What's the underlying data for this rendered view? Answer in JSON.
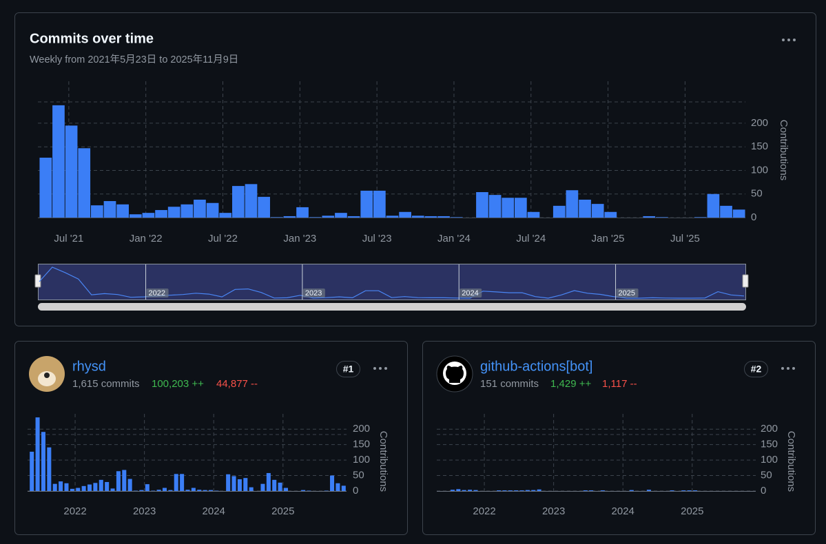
{
  "header": {
    "title": "Commits over time",
    "subtitle": "Weekly from 2021年5月23日 to 2025年11月9日"
  },
  "navigator": {
    "labels": [
      "2022",
      "2023",
      "2024",
      "2025"
    ]
  },
  "contributors": [
    {
      "name": "rhysd",
      "rank": "#1",
      "commits": "1,615 commits",
      "additions": "100,203 ++",
      "deletions": "44,877 --"
    },
    {
      "name": "github-actions[bot]",
      "rank": "#2",
      "commits": "151 commits",
      "additions": "1,429 ++",
      "deletions": "1,117 --"
    }
  ],
  "chart_data": [
    {
      "type": "bar",
      "y_label": "Contributions",
      "color": "#3b7ef6",
      "grid": true,
      "categories": [
        null,
        null,
        "Jul '21",
        null,
        null,
        null,
        null,
        null,
        "Jan '22",
        null,
        null,
        null,
        null,
        null,
        "Jul '22",
        null,
        null,
        null,
        null,
        null,
        "Jan '23",
        null,
        null,
        null,
        null,
        null,
        "Jul '23",
        null,
        null,
        null,
        null,
        null,
        "Jan '24",
        null,
        null,
        null,
        null,
        null,
        "Jul '24",
        null,
        null,
        null,
        null,
        null,
        "Jan '25",
        null,
        null,
        null,
        null,
        null,
        "Jul '25",
        null,
        null,
        null,
        null
      ],
      "values": [
        127,
        238,
        195,
        147,
        26,
        35,
        28,
        7,
        10,
        16,
        23,
        28,
        38,
        31,
        10,
        67,
        71,
        44,
        1,
        3,
        22,
        1,
        4,
        10,
        3,
        57,
        57,
        4,
        12,
        4,
        3,
        3,
        1,
        0,
        54,
        48,
        42,
        42,
        12,
        0,
        25,
        58,
        38,
        29,
        12,
        0,
        0,
        3,
        1,
        0,
        0,
        1,
        50,
        25,
        17
      ],
      "ylim": [
        0,
        286
      ],
      "yticks": [
        0,
        50,
        100,
        150,
        200
      ]
    },
    {
      "type": "bar",
      "y_label": "Contributions",
      "color": "#3b7ef6",
      "grid": true,
      "categories": [
        null,
        null,
        null,
        null,
        null,
        null,
        null,
        null,
        "2022",
        null,
        null,
        null,
        null,
        null,
        null,
        null,
        null,
        null,
        null,
        null,
        "2023",
        null,
        null,
        null,
        null,
        null,
        null,
        null,
        null,
        null,
        null,
        null,
        "2024",
        null,
        null,
        null,
        null,
        null,
        null,
        null,
        null,
        null,
        null,
        null,
        "2025",
        null,
        null,
        null,
        null,
        null,
        null,
        null,
        null,
        null,
        null
      ],
      "values": [
        127,
        238,
        191,
        141,
        23,
        31,
        25,
        7,
        10,
        16,
        21,
        26,
        36,
        29,
        8,
        64,
        68,
        39,
        1,
        3,
        22,
        1,
        4,
        10,
        3,
        55,
        55,
        4,
        10,
        4,
        3,
        3,
        1,
        0,
        54,
        48,
        38,
        42,
        12,
        0,
        23,
        58,
        36,
        27,
        10,
        0,
        0,
        3,
        1,
        0,
        0,
        1,
        50,
        25,
        17
      ],
      "ylim": [
        0,
        245
      ],
      "yticks": [
        0,
        50,
        100,
        150,
        200
      ]
    },
    {
      "type": "bar",
      "y_label": "Contributions",
      "color": "#3b7ef6",
      "grid": true,
      "categories": [
        null,
        null,
        null,
        null,
        null,
        null,
        null,
        null,
        "2022",
        null,
        null,
        null,
        null,
        null,
        null,
        null,
        null,
        null,
        null,
        null,
        "2023",
        null,
        null,
        null,
        null,
        null,
        null,
        null,
        null,
        null,
        null,
        null,
        "2024",
        null,
        null,
        null,
        null,
        null,
        null,
        null,
        null,
        null,
        null,
        null,
        "2025",
        null,
        null,
        null,
        null,
        null,
        null,
        null,
        null,
        null,
        null
      ],
      "values": [
        0,
        0,
        4,
        6,
        3,
        4,
        3,
        0,
        0,
        0,
        2,
        2,
        2,
        2,
        2,
        3,
        3,
        5,
        0,
        0,
        0,
        0,
        0,
        0,
        0,
        2,
        2,
        0,
        2,
        0,
        0,
        0,
        0,
        3,
        0,
        0,
        4,
        0,
        0,
        0,
        2,
        0,
        2,
        2,
        2,
        0,
        0,
        0,
        0,
        0,
        0,
        0,
        0,
        0,
        0
      ],
      "ylim": [
        0,
        245
      ],
      "yticks": [
        0,
        50,
        100,
        150,
        200
      ]
    }
  ]
}
